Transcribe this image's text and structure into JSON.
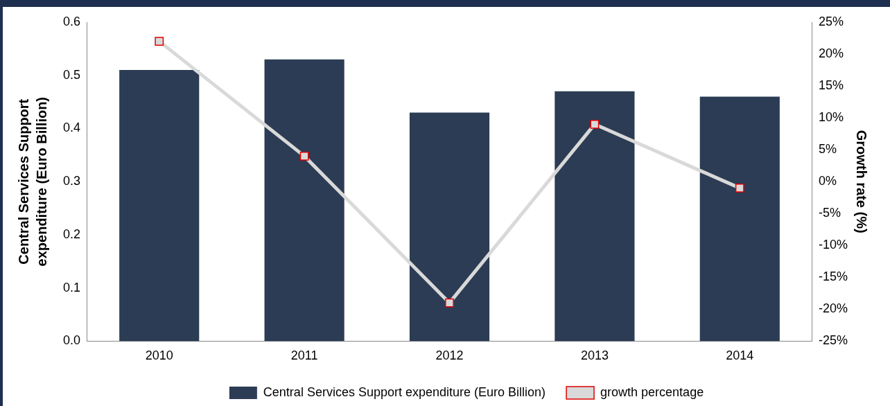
{
  "chart_data": {
    "type": "bar",
    "categories": [
      "2010",
      "2011",
      "2012",
      "2013",
      "2014"
    ],
    "series": [
      {
        "name": "Central Services Support expenditure (Euro Billion)",
        "color": "#2c3c54",
        "values": [
          0.51,
          0.53,
          0.43,
          0.47,
          0.46
        ]
      },
      {
        "name": "growth percentage",
        "type": "line",
        "axis": "y2",
        "color": "#d9d9d9",
        "values": [
          22,
          4,
          -19,
          9,
          -1
        ]
      }
    ],
    "ylabel": "Central Services Support expenditure (Euro Billion)",
    "y2label": "Growth rate (%)",
    "ylim": [
      0,
      0.6
    ],
    "yticks": [
      {
        "value": 0,
        "label": "0.0"
      },
      0.1,
      0.2,
      0.3,
      0.4,
      0.5,
      0.6
    ],
    "y2lim": [
      -25,
      25
    ],
    "y2ticks": [
      {
        "value": -25,
        "label": "-25%"
      },
      {
        "value": -20,
        "label": "-20%"
      },
      {
        "value": -15,
        "label": "-15%"
      },
      {
        "value": -10,
        "label": "-10%"
      },
      {
        "value": -5,
        "label": "-5%"
      },
      {
        "value": 0,
        "label": "0%"
      },
      {
        "value": 5,
        "label": "5%"
      },
      {
        "value": 10,
        "label": "10%"
      },
      {
        "value": 15,
        "label": "15%"
      },
      {
        "value": 20,
        "label": "20%"
      },
      {
        "value": 25,
        "label": "25%"
      }
    ],
    "marker": "square",
    "grid": false,
    "legend": "bottom"
  }
}
